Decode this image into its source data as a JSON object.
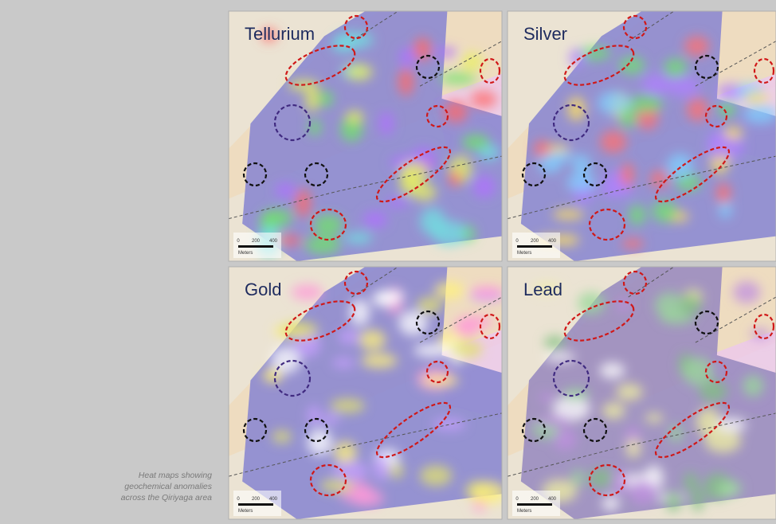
{
  "panels": [
    {
      "label": "Tellurium",
      "scale": {
        "ticks": [
          "0",
          "200",
          "400"
        ],
        "unit": "Meters"
      }
    },
    {
      "label": "Silver",
      "scale": {
        "ticks": [
          "0",
          "200",
          "400"
        ],
        "unit": "Meters"
      }
    },
    {
      "label": "Gold",
      "scale": {
        "ticks": [
          "0",
          "200",
          "400"
        ],
        "unit": "Meters"
      }
    },
    {
      "label": "Lead",
      "scale": {
        "ticks": [
          "0",
          "200",
          "400"
        ],
        "unit": "Meters"
      }
    }
  ],
  "caption": [
    "Heat maps showing",
    "geochemical anomalies",
    "across the Qiriyaga area"
  ]
}
